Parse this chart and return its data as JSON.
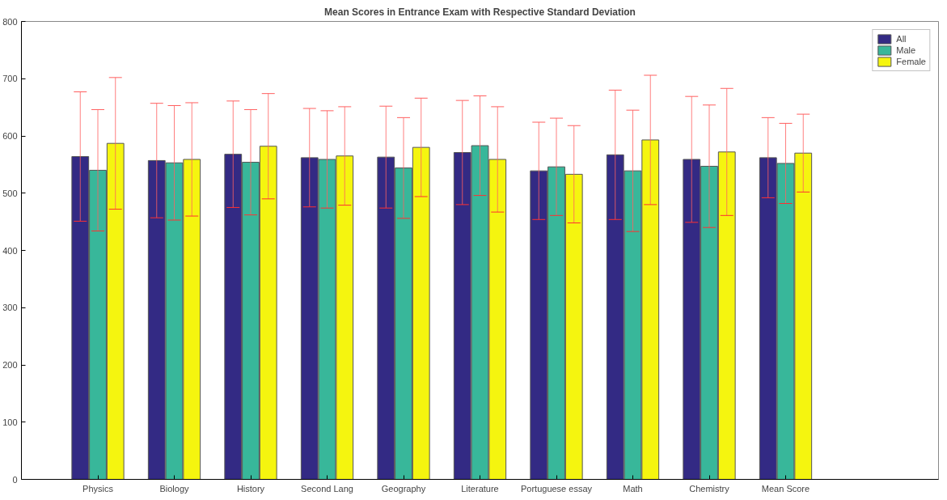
{
  "chart_data": {
    "type": "bar",
    "title": "Mean Scores in Entrance Exam with Respective Standard Deviation",
    "categories": [
      "Physics",
      "Biology",
      "History",
      "Second Lang",
      "Geography",
      "Literature",
      "Portuguese essay",
      "Math",
      "Chemistry",
      "Mean Score"
    ],
    "series": [
      {
        "name": "All",
        "color": "#332a84",
        "values": [
          564,
          557,
          568,
          562,
          563,
          571,
          539,
          567,
          559,
          562
        ],
        "errors": [
          113,
          100,
          93,
          86,
          89,
          91,
          85,
          113,
          110,
          70
        ]
      },
      {
        "name": "Male",
        "color": "#38b79a",
        "values": [
          540,
          553,
          554,
          559,
          544,
          583,
          546,
          539,
          547,
          552
        ],
        "errors": [
          106,
          100,
          92,
          85,
          88,
          87,
          85,
          106,
          107,
          70
        ]
      },
      {
        "name": "Female",
        "color": "#f5f50f",
        "values": [
          587,
          559,
          582,
          565,
          580,
          559,
          533,
          593,
          572,
          570
        ],
        "errors": [
          115,
          99,
          92,
          86,
          86,
          92,
          85,
          113,
          111,
          68
        ]
      }
    ],
    "ylim": [
      0,
      800
    ],
    "yticks": [
      0,
      100,
      200,
      300,
      400,
      500,
      600,
      700,
      800
    ],
    "grid": false,
    "legend": "top right"
  }
}
